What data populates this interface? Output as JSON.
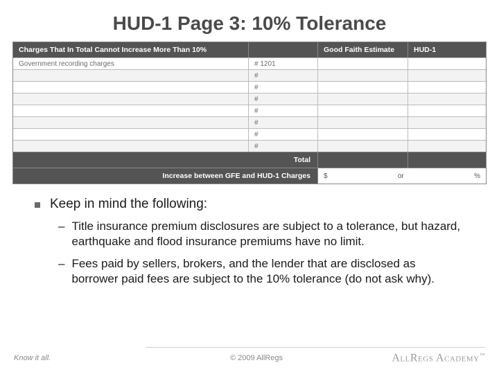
{
  "title": "HUD-1 Page 3: 10% Tolerance",
  "table": {
    "header": {
      "left": "Charges That In Total Cannot Increase More Than 10%",
      "gfe": "Good Faith Estimate",
      "hud": "HUD-1"
    },
    "rows": [
      {
        "left": "Government recording charges",
        "mid": "# 1201",
        "alt": false
      },
      {
        "left": "",
        "mid": "#",
        "alt": true
      },
      {
        "left": "",
        "mid": "#",
        "alt": false
      },
      {
        "left": "",
        "mid": "#",
        "alt": true
      },
      {
        "left": "",
        "mid": "#",
        "alt": false
      },
      {
        "left": "",
        "mid": "#",
        "alt": true
      },
      {
        "left": "",
        "mid": "#",
        "alt": false
      },
      {
        "left": "",
        "mid": "#",
        "alt": true
      }
    ],
    "total_label": "Total",
    "increase_label": "Increase between GFE and HUD-1 Charges",
    "inc_s": "$",
    "inc_or": "or",
    "inc_pct": "%"
  },
  "body": {
    "lead": "Keep in mind the following:",
    "points": [
      "Title insurance premium disclosures are subject to a tolerance, but hazard, earthquake and flood insurance premiums have no limit.",
      "Fees paid by sellers, brokers, and the lender that are disclosed as borrower paid fees are subject to the 10% tolerance (do not ask why)."
    ]
  },
  "footer": {
    "tagline": "Know it all.",
    "copyright": "© 2009 AllRegs",
    "logo_a": "AllRegs",
    "logo_b": " Academy"
  },
  "colors": {
    "dark_row": "#545454",
    "text": "#1a1a1a",
    "muted": "#888888"
  }
}
